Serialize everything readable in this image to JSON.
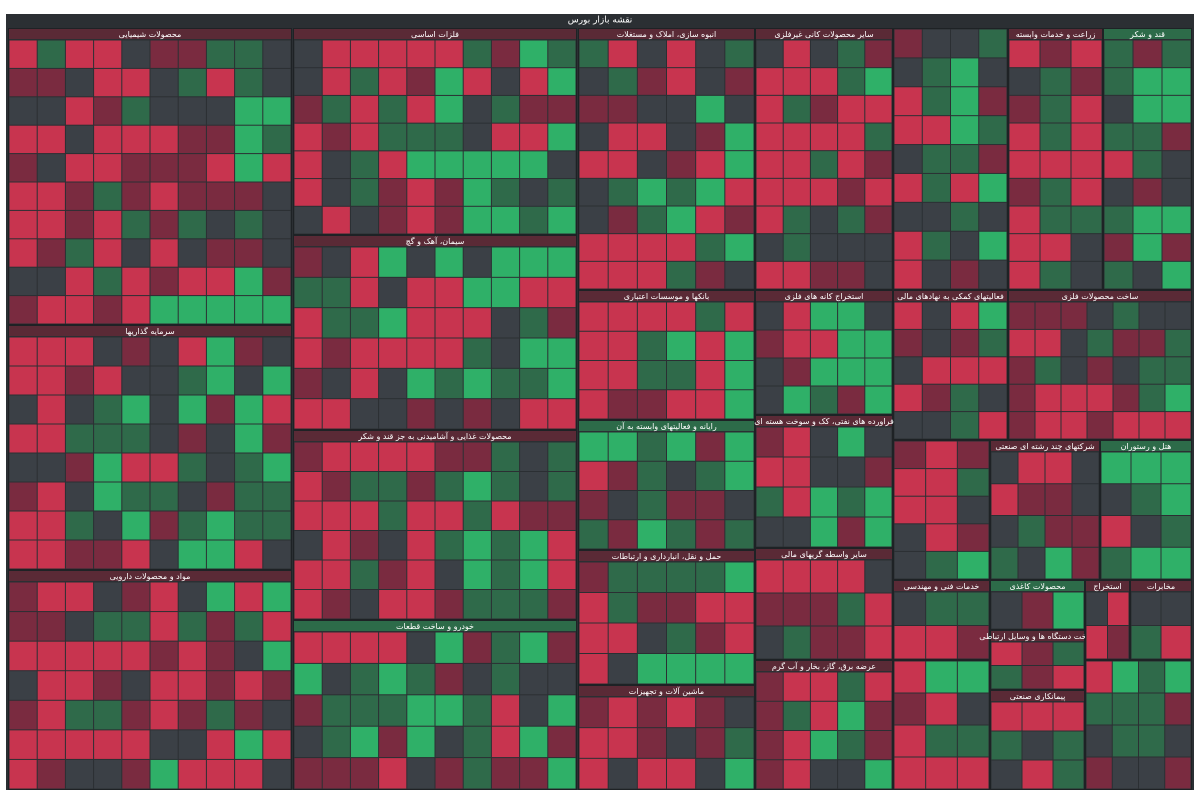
{
  "header": {
    "title": "نقشه بازار بورس"
  },
  "sectors": [
    {
      "title": "محصولات شیمیایی"
    },
    {
      "title": "فلزات اساسی"
    },
    {
      "title": "انبوه سازی، املاک و مستغلات"
    },
    {
      "title": "سایر محصولات کانی غیرفلزی"
    },
    {
      "title": "زراعت و خدمات وابسته"
    },
    {
      "title": "قند و شکر"
    },
    {
      "title": "سیمان، آهک و گچ"
    },
    {
      "title": "بانکها و موسسات اعتباری"
    },
    {
      "title": "استخراج کانه های فلزی"
    },
    {
      "title": "فعالیتهای کمکی به نهادهای مالی"
    },
    {
      "title": "ساخت محصولات فلزی"
    },
    {
      "title": "سرمایه گذاریها"
    },
    {
      "title": "محصولات غذایی و آشامیدنی به جز قند و شکر"
    },
    {
      "title": "رایانه و فعالیتهای وابسته به آن"
    },
    {
      "title": "فراورده های نفتی، کک و سوخت هسته ای"
    },
    {
      "title": "شرکتهای چند رشته ای صنعتی"
    },
    {
      "title": "هتل و رستوران"
    },
    {
      "title": "مواد و محصولات دارویی"
    },
    {
      "title": "خودرو و ساخت قطعات"
    },
    {
      "title": "حمل و نقل، انبارداری و ارتباطات"
    },
    {
      "title": "ماشین آلات و تجهیزات"
    },
    {
      "title": "سایر واسطه گریهای مالی"
    },
    {
      "title": "عرضه برق، گاز، بخار و آب گرم"
    },
    {
      "title": "خدمات فنی و مهندسی"
    },
    {
      "title": "محصولات کاغذی"
    },
    {
      "title": "ساخت دستگاه ها و وسایل ارتباطی"
    },
    {
      "title": "پیمانکاری صنعتی"
    },
    {
      "title": "استخراج"
    },
    {
      "title": "مخابرات"
    }
  ]
}
